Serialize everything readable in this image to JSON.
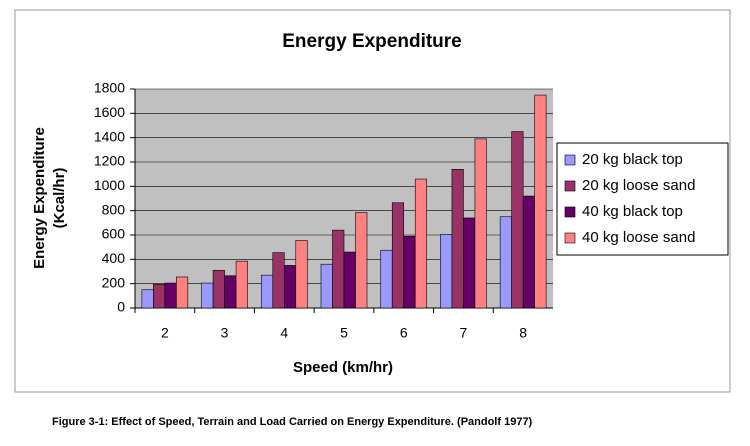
{
  "chart_data": {
    "type": "bar",
    "title": "Energy Expenditure",
    "xlabel": "Speed (km/hr)",
    "ylabel": [
      "Energy Expenditure",
      "(Kcal/hr)"
    ],
    "categories": [
      "2",
      "3",
      "4",
      "5",
      "6",
      "7",
      "8"
    ],
    "series": [
      {
        "name": "20 kg black top",
        "color": "#9999ff",
        "values": [
          150,
          205,
          270,
          360,
          475,
          605,
          750
        ]
      },
      {
        "name": "20 kg loose sand",
        "color": "#993366",
        "values": [
          195,
          310,
          455,
          640,
          865,
          1140,
          1450
        ]
      },
      {
        "name": "40 kg black top",
        "color": "#660066",
        "values": [
          205,
          265,
          350,
          460,
          590,
          740,
          920
        ]
      },
      {
        "name": "40 kg loose sand",
        "color": "#ff8080",
        "values": [
          255,
          385,
          555,
          785,
          1060,
          1390,
          1750
        ]
      }
    ],
    "ylim": [
      0,
      1800
    ],
    "yticks": [
      0,
      200,
      400,
      600,
      800,
      1000,
      1200,
      1400,
      1600,
      1800
    ],
    "grid": true,
    "legend": "right"
  },
  "caption": "Figure 3-1: Effect of Speed, Terrain and Load Carried on Energy Expenditure. (Pandolf 1977)"
}
